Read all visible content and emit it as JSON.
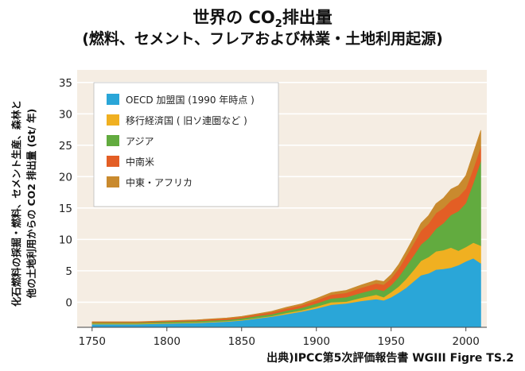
{
  "title": {
    "line1": "世界の CO2排出量",
    "line2": "(燃料、セメント、フレアおよび林業・土地利用起源)"
  },
  "source_note": "出典)IPCC第5次評価報告書 WGIII Figre TS.2",
  "colors": {
    "oecd": "#2aa6d8",
    "transition": "#f0b021",
    "asia": "#62ab3f",
    "latin_america": "#e35e25",
    "middle_east_africa": "#c98a2e",
    "plot_background": "#f5ede3",
    "grid": "#ffffff"
  },
  "chart_data": {
    "type": "area",
    "stacked": true,
    "title": "世界の CO2排出量",
    "subtitle": "(燃料、セメント、フレアおよび林業・土地利用起源)",
    "xlabel": "",
    "ylabel": [
      "化石燃料の採掘・燃料、セメント生産、森林と",
      "他の土地利用からの CO2 排出量 (Gt/ 年)"
    ],
    "xlim": [
      1740,
      2014
    ],
    "ylim": [
      -4,
      37
    ],
    "xticks": [
      1750,
      1800,
      1850,
      1900,
      1950,
      2000
    ],
    "yticks": [
      0,
      5,
      10,
      15,
      20,
      25,
      30,
      35
    ],
    "grid": "horizontal",
    "legend_position": "top-left",
    "baseline": -4,
    "x": [
      1750,
      1780,
      1800,
      1820,
      1840,
      1850,
      1860,
      1870,
      1880,
      1890,
      1900,
      1910,
      1920,
      1930,
      1940,
      1945,
      1950,
      1955,
      1960,
      1965,
      1970,
      1975,
      1980,
      1985,
      1990,
      1995,
      2000,
      2005,
      2010
    ],
    "series": [
      {
        "name": "OECD 加盟国 (1990 年時点 )",
        "color_key": "oecd",
        "values": [
          -3.5,
          -3.5,
          -3.4,
          -3.3,
          -3.1,
          -2.9,
          -2.6,
          -2.3,
          -1.9,
          -1.5,
          -1.0,
          -0.4,
          -0.2,
          0.2,
          0.5,
          0.3,
          0.8,
          1.5,
          2.3,
          3.3,
          4.3,
          4.6,
          5.2,
          5.3,
          5.5,
          5.9,
          6.5,
          7.0,
          6.2
        ]
      },
      {
        "name": "移行経済国 ( 旧ソ連圏など )",
        "color_key": "transition",
        "values": [
          0.1,
          0.1,
          0.1,
          0.1,
          0.1,
          0.1,
          0.1,
          0.1,
          0.2,
          0.2,
          0.3,
          0.4,
          0.3,
          0.5,
          0.7,
          0.5,
          0.8,
          1.0,
          1.4,
          1.8,
          2.3,
          2.6,
          2.9,
          3.0,
          3.2,
          2.3,
          2.3,
          2.5,
          2.8
        ]
      },
      {
        "name": "アジア",
        "color_key": "asia",
        "values": [
          0.15,
          0.15,
          0.2,
          0.2,
          0.2,
          0.25,
          0.3,
          0.3,
          0.35,
          0.4,
          0.5,
          0.6,
          0.7,
          0.8,
          0.9,
          1.0,
          1.1,
          1.5,
          2.0,
          2.3,
          2.6,
          3.0,
          3.6,
          4.3,
          5.2,
          6.3,
          7.0,
          9.5,
          13.5
        ]
      },
      {
        "name": "中南米",
        "color_key": "latin_america",
        "values": [
          0.1,
          0.1,
          0.1,
          0.15,
          0.2,
          0.2,
          0.25,
          0.3,
          0.35,
          0.4,
          0.5,
          0.6,
          0.7,
          0.8,
          0.9,
          1.0,
          1.1,
          1.3,
          1.6,
          1.9,
          2.2,
          2.3,
          2.5,
          2.4,
          2.3,
          2.3,
          2.3,
          2.3,
          2.3
        ]
      },
      {
        "name": "中東・アフリカ",
        "color_key": "middle_east_africa",
        "values": [
          0.05,
          0.05,
          0.05,
          0.05,
          0.1,
          0.1,
          0.1,
          0.15,
          0.2,
          0.25,
          0.3,
          0.35,
          0.4,
          0.45,
          0.5,
          0.5,
          0.6,
          0.7,
          0.8,
          1.0,
          1.2,
          1.3,
          1.5,
          1.6,
          1.8,
          1.8,
          2.1,
          2.5,
          2.6
        ]
      }
    ]
  }
}
